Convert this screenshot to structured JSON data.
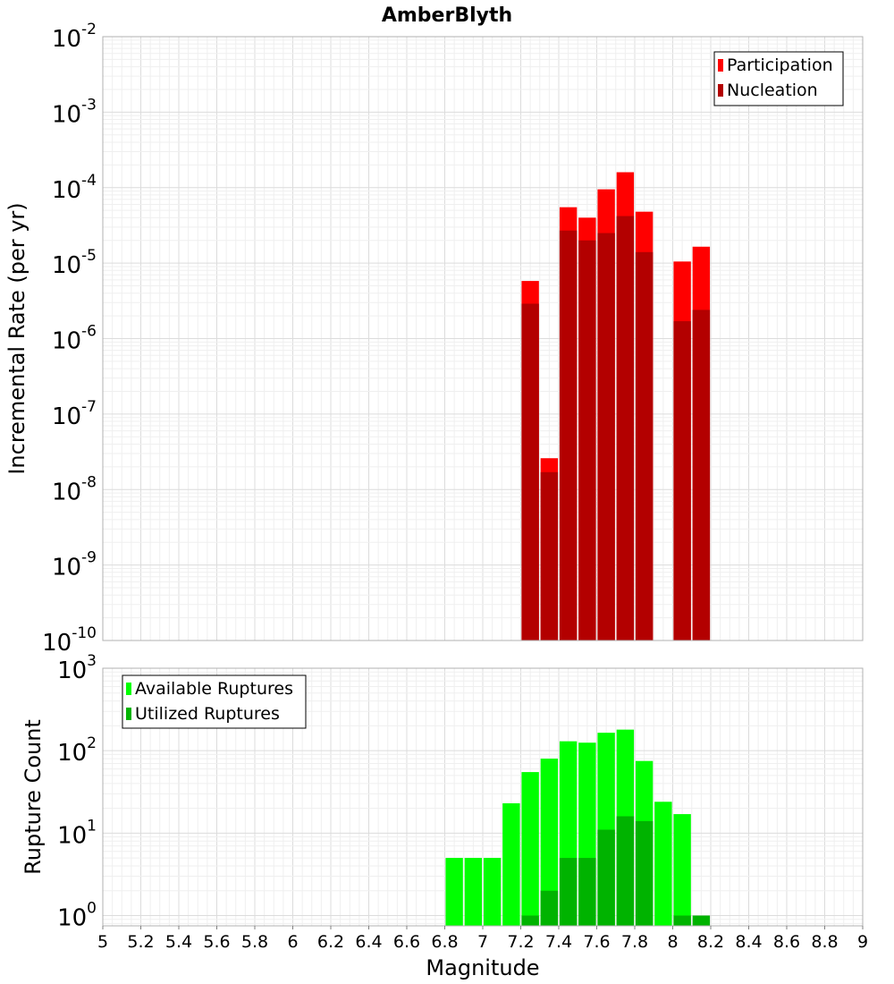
{
  "chart_data": [
    {
      "type": "bar",
      "title": "AmberBlyth",
      "ylabel": "Incremental Rate (per yr)",
      "ylim": [
        1e-10,
        0.01
      ],
      "yscale": "log",
      "x_tick_labels": [
        "5",
        "5.2",
        "5.4",
        "5.6",
        "5.8",
        "6",
        "6.2",
        "6.4",
        "6.6",
        "6.8",
        "7",
        "7.2",
        "7.4",
        "7.6",
        "7.8",
        "8",
        "8.2",
        "8.4",
        "8.6",
        "8.8",
        "9"
      ],
      "xlim": [
        5,
        9
      ],
      "grid": true,
      "legend_position": "top-right",
      "x": [
        7.25,
        7.35,
        7.45,
        7.55,
        7.65,
        7.75,
        7.85,
        8.05,
        8.15
      ],
      "series": [
        {
          "name": "Participation",
          "color": "#ff0000",
          "values": [
            5.8e-06,
            2.6e-08,
            5.5e-05,
            4e-05,
            9.5e-05,
            0.00016,
            4.8e-05,
            1.05e-05,
            1.65e-05
          ]
        },
        {
          "name": "Nucleation",
          "color": "#b30000",
          "values": [
            2.9e-06,
            1.7e-08,
            2.7e-05,
            2e-05,
            2.5e-05,
            4.2e-05,
            1.4e-05,
            1.7e-06,
            2.4e-06
          ]
        }
      ]
    },
    {
      "type": "bar",
      "ylabel": "Rupture Count",
      "xlabel": "Magnitude",
      "ylim": [
        0.75,
        1000
      ],
      "yscale": "log",
      "xlim": [
        5,
        9
      ],
      "grid": true,
      "legend_position": "top-left",
      "series": [
        {
          "name": "Available Ruptures",
          "color": "#00ff00",
          "x": [
            6.85,
            6.95,
            7.05,
            7.15,
            7.25,
            7.35,
            7.45,
            7.55,
            7.65,
            7.75,
            7.85,
            7.95,
            8.05
          ],
          "values": [
            5,
            5,
            5,
            23,
            55,
            80,
            130,
            125,
            165,
            180,
            75,
            24,
            17
          ]
        },
        {
          "name": "Utilized Ruptures",
          "color": "#00b300",
          "x": [
            7.25,
            7.35,
            7.45,
            7.55,
            7.65,
            7.75,
            7.85,
            8.05,
            8.15
          ],
          "values": [
            1,
            2,
            5,
            5,
            11,
            16,
            14,
            1,
            1
          ]
        }
      ]
    }
  ]
}
